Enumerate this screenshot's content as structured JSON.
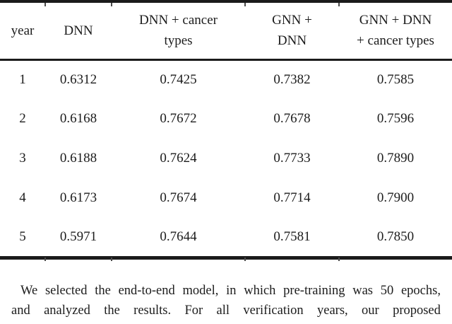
{
  "table": {
    "headers": [
      "year",
      "DNN",
      "DNN + cancer\ntypes",
      "GNN +\nDNN",
      "GNN + DNN\n+ cancer types"
    ],
    "rows": [
      [
        "1",
        "0.6312",
        "0.7425",
        "0.7382",
        "0.7585"
      ],
      [
        "2",
        "0.6168",
        "0.7672",
        "0.7678",
        "0.7596"
      ],
      [
        "3",
        "0.6188",
        "0.7624",
        "0.7733",
        "0.7890"
      ],
      [
        "4",
        "0.6173",
        "0.7674",
        "0.7714",
        "0.7900"
      ],
      [
        "5",
        "0.5971",
        "0.7644",
        "0.7581",
        "0.7850"
      ]
    ]
  },
  "paragraph": {
    "lines": [
      "We selected the end-to-end model, in which pre-training was 50 epochs,",
      "and analyzed the results. For all verification years, our proposed"
    ]
  },
  "colors": {
    "text": "#1c1c1c",
    "rule": "#1b1b1b",
    "background": "#ffffff"
  }
}
